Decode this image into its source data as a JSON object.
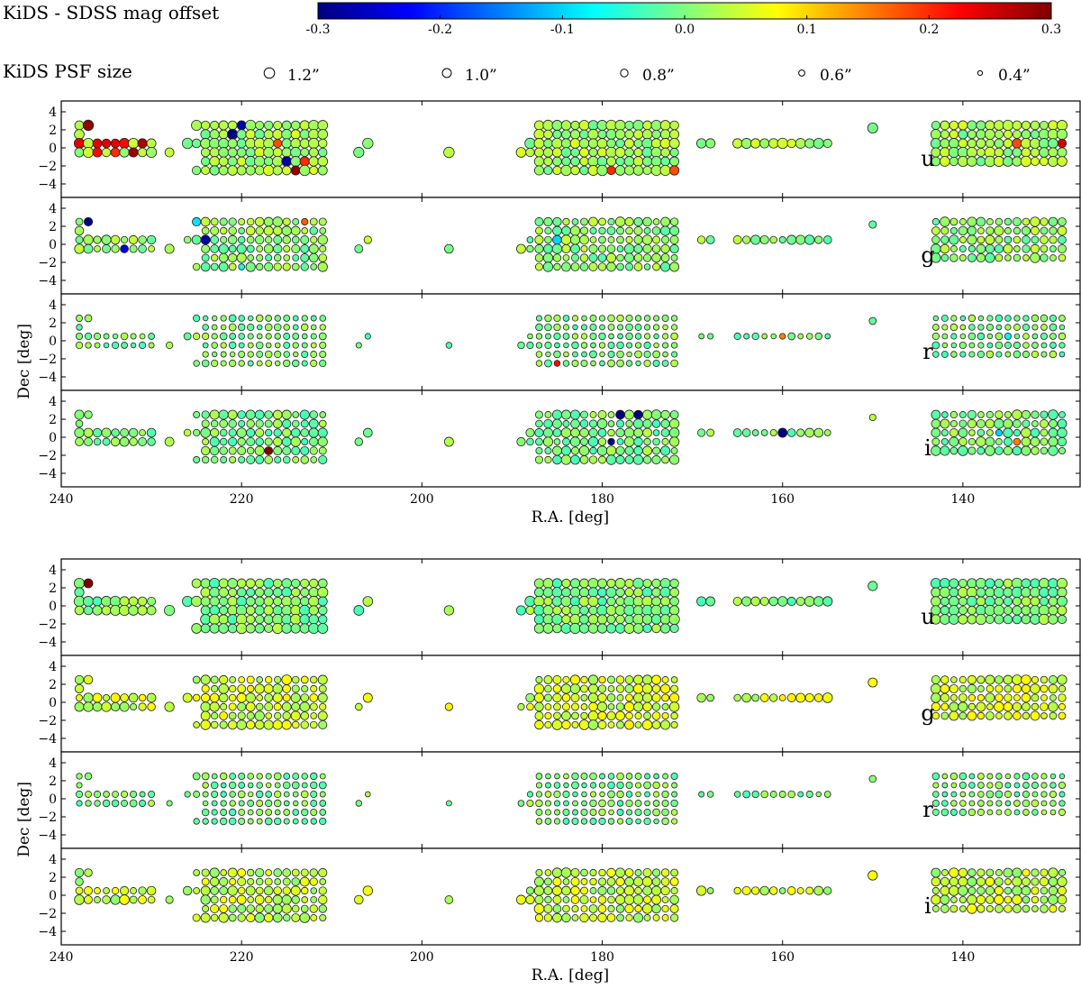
{
  "colorbar": {
    "label": "KiDS - SDSS mag offset",
    "ticks": [
      "-0.3",
      "-0.2",
      "-0.1",
      "0.0",
      "0.1",
      "0.2",
      "0.3"
    ],
    "range": [
      -0.3,
      0.3
    ],
    "colormap": "jet",
    "colors": [
      "#00007f",
      "#0000ff",
      "#007fff",
      "#00ffff",
      "#7fff7f",
      "#ffff00",
      "#ff7f00",
      "#ff0000",
      "#7f0000"
    ]
  },
  "psf_legend": {
    "label": "KiDS PSF size",
    "items": [
      {
        "label": "1.2”",
        "value": 1.2
      },
      {
        "label": "1.0”",
        "value": 1.0
      },
      {
        "label": "0.8”",
        "value": 0.8
      },
      {
        "label": "0.6”",
        "value": 0.6
      },
      {
        "label": "0.4”",
        "value": 0.4
      }
    ]
  },
  "chart_data": {
    "type": "scatter",
    "description_of_encoding": "",
    "x_axis": {
      "label": "R.A. [deg]",
      "range": [
        240,
        127
      ],
      "ticks": [
        "240",
        "220",
        "200",
        "180",
        "160",
        "140"
      ]
    },
    "y_axis": {
      "label": "Dec [deg]",
      "range": [
        -5.5,
        5.2
      ],
      "ticks": [
        "4",
        "2",
        "0",
        "−2",
        "−4"
      ]
    },
    "bands": [
      "u",
      "g",
      "r",
      "i"
    ],
    "figures": [
      {
        "offsets": {
          "u": 0.02,
          "g": 0.01,
          "r": 0.0,
          "i": 0.0
        },
        "outliers": {
          "u": [
            [
              237,
              2.5,
              0.29
            ],
            [
              238,
              0.5,
              0.24
            ],
            [
              236,
              0.5,
              0.24
            ],
            [
              235,
              0.5,
              0.24
            ],
            [
              234,
              0.5,
              0.24
            ],
            [
              233,
              0.5,
              0.22
            ],
            [
              231,
              0.5,
              0.27
            ],
            [
              236,
              -0.5,
              0.22
            ],
            [
              234,
              -0.5,
              0.2
            ],
            [
              232,
              -0.5,
              0.28
            ],
            [
              221,
              1.5,
              -0.3
            ],
            [
              220,
              2.5,
              -0.27
            ],
            [
              215,
              -1.5,
              -0.28
            ],
            [
              214,
              -2.5,
              0.29
            ],
            [
              213,
              -1.5,
              0.2
            ],
            [
              216,
              0.5,
              0.18
            ],
            [
              179,
              -2.5,
              0.2
            ],
            [
              172,
              -2.5,
              0.18
            ],
            [
              134,
              0.5,
              0.18
            ],
            [
              129,
              0.5,
              0.25
            ]
          ],
          "g": [
            [
              237,
              2.5,
              -0.3
            ],
            [
              225,
              2.5,
              -0.09
            ],
            [
              224,
              0.5,
              -0.28
            ],
            [
              233,
              -0.5,
              -0.25
            ],
            [
              220,
              -2.5,
              -0.06
            ],
            [
              185,
              0.5,
              -0.1
            ],
            [
              213,
              2.5,
              0.17
            ]
          ],
          "r": [
            [
              185,
              -2.5,
              0.22
            ],
            [
              160,
              0.5,
              0.15
            ],
            [
              135,
              0.5,
              -0.08
            ]
          ],
          "i": [
            [
              178,
              2.5,
              -0.3
            ],
            [
              176,
              2.5,
              -0.3
            ],
            [
              179,
              -0.5,
              -0.3
            ],
            [
              160,
              0.5,
              -0.3
            ],
            [
              217,
              -1.5,
              0.3
            ],
            [
              136,
              0.5,
              -0.1
            ],
            [
              134,
              -0.5,
              0.15
            ]
          ]
        }
      },
      {
        "offsets": {
          "u": 0.0,
          "g": 0.05,
          "r": 0.0,
          "i": 0.04
        },
        "outliers": {
          "u": [
            [
              237,
              2.5,
              0.3
            ]
          ],
          "g": [],
          "r": [],
          "i": []
        }
      }
    ]
  }
}
